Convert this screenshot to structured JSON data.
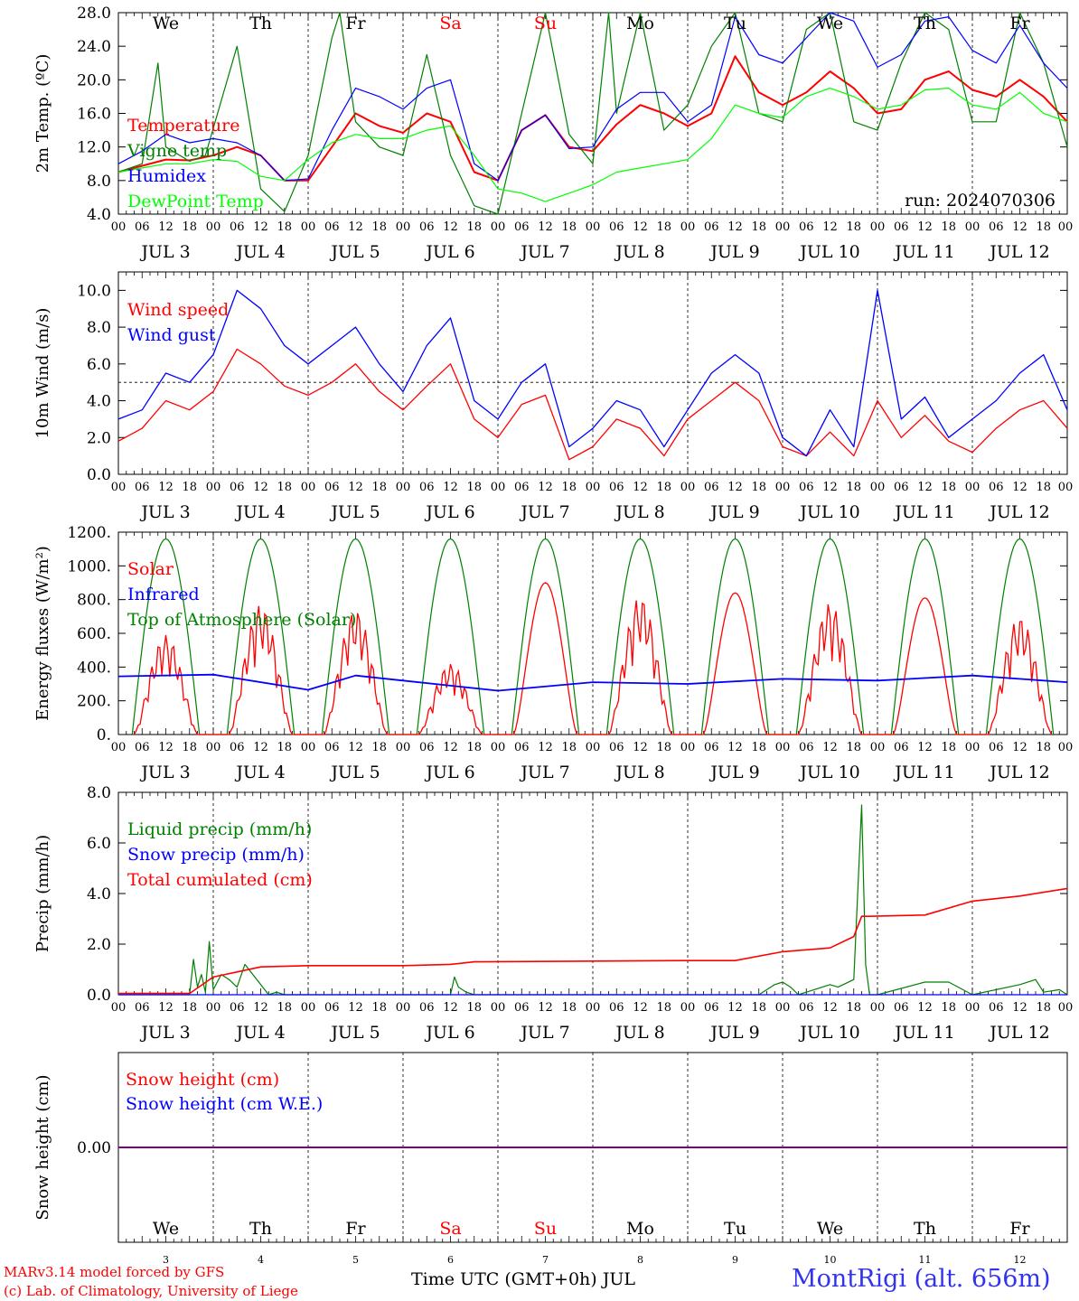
{
  "colors": {
    "red": "#ff0000",
    "green": "#008000",
    "blue": "#0000ff",
    "lightgreen": "#00ff00",
    "purple": "#7f007f",
    "black": "#000000"
  },
  "days": [
    "We",
    "Th",
    "Fr",
    "Sa",
    "Su",
    "Mo",
    "Tu",
    "We",
    "Th",
    "Fr"
  ],
  "weekend_days": [
    3,
    4
  ],
  "hour_ticks": [
    "00",
    "06",
    "12",
    "18"
  ],
  "end_tick": "00",
  "dates": [
    "JUL 3",
    "JUL 4",
    "JUL 5",
    "JUL 6",
    "JUL 7",
    "JUL 8",
    "JUL 9",
    "JUL 10",
    "JUL 11",
    "JUL 12"
  ],
  "bottom_day_numbers": [
    "3",
    "4",
    "5",
    "6",
    "7",
    "8",
    "9",
    "10",
    "11",
    "12"
  ],
  "run_label": "run: 2024070306",
  "footer": {
    "model": "MARv3.14 model forced by GFS",
    "lab": "(c) Lab. of Climatology, University of Liege",
    "xlabel": "Time UTC (GMT+0h) JUL",
    "station": "MontRigi (alt. 656m)"
  },
  "chart_data": [
    {
      "type": "line",
      "ylabel": "2m Temp. (ºC)",
      "ylim": [
        4,
        28
      ],
      "yticks": [
        "4.0",
        "8.0",
        "12.0",
        "16.0",
        "20.0",
        "24.0",
        "28.0"
      ],
      "x_unit": "hours since JUL 3 00 UTC",
      "legend": [
        "Temperature",
        "Vigne temp",
        "Humidex",
        "DewPoint Temp"
      ],
      "series": [
        {
          "name": "Temperature",
          "color": "red",
          "x": [
            0,
            12,
            18,
            24,
            30,
            36,
            42,
            48,
            54,
            60,
            66,
            72,
            78,
            84,
            90,
            96,
            102,
            108,
            114,
            120,
            126,
            132,
            138,
            144,
            150,
            156,
            162,
            168,
            174,
            180,
            186,
            192,
            198,
            204,
            210,
            216,
            222,
            228,
            234,
            240
          ],
          "values": [
            9.0,
            10.5,
            10.4,
            11.0,
            12.0,
            11.0,
            8.0,
            8.0,
            12.0,
            16.0,
            14.5,
            13.7,
            16.0,
            15.0,
            9.0,
            8.0,
            14.0,
            15.8,
            12.0,
            11.5,
            14.7,
            17.0,
            16.0,
            14.5,
            16.0,
            22.8,
            18.5,
            17.0,
            18.5,
            21.0,
            19.0,
            16.0,
            16.5,
            20.0,
            21.0,
            18.8,
            18.0,
            20.0,
            18.0,
            15.0
          ]
        },
        {
          "name": "Vigne temp",
          "color": "green",
          "x": [
            0,
            6,
            10,
            12,
            18,
            22,
            30,
            36,
            42,
            48,
            54,
            56,
            60,
            66,
            72,
            78,
            84,
            90,
            96,
            102,
            108,
            114,
            120,
            124,
            126,
            132,
            138,
            144,
            150,
            156,
            162,
            168,
            174,
            180,
            186,
            192,
            198,
            204,
            210,
            216,
            222,
            228,
            234,
            240
          ],
          "values": [
            9.0,
            10.0,
            22.0,
            12.0,
            10.3,
            11.0,
            24.0,
            7.0,
            4.3,
            11.0,
            25.0,
            28.0,
            15.0,
            12.0,
            11.0,
            23.0,
            11.0,
            5.0,
            4.0,
            16.0,
            28.0,
            13.5,
            10.0,
            28.0,
            16.0,
            28.0,
            14.0,
            17.0,
            24.0,
            28.0,
            16.0,
            15.0,
            26.0,
            28.0,
            15.0,
            14.0,
            22.0,
            28.0,
            26.0,
            15.0,
            15.0,
            28.0,
            22.0,
            12.0
          ]
        },
        {
          "name": "Humidex",
          "color": "blue",
          "x": [
            0,
            6,
            12,
            18,
            24,
            30,
            36,
            42,
            48,
            54,
            60,
            66,
            72,
            78,
            84,
            90,
            96,
            102,
            108,
            114,
            120,
            126,
            132,
            138,
            144,
            150,
            156,
            162,
            168,
            174,
            180,
            186,
            192,
            198,
            204,
            210,
            216,
            222,
            228,
            234,
            240
          ],
          "values": [
            10.0,
            11.5,
            13.5,
            12.5,
            13.0,
            12.5,
            11.0,
            8.0,
            8.2,
            14.0,
            19.0,
            18.0,
            16.5,
            19.0,
            20.0,
            10.0,
            8.0,
            14.0,
            15.8,
            11.8,
            12.0,
            16.5,
            18.5,
            18.5,
            15.0,
            17.0,
            27.5,
            23.0,
            22.0,
            25.0,
            28.0,
            27.0,
            21.5,
            23.0,
            27.0,
            27.5,
            23.5,
            22.0,
            26.5,
            22.0,
            19.0
          ]
        },
        {
          "name": "DewPoint Temp",
          "color": "lightgreen",
          "x": [
            0,
            6,
            12,
            18,
            24,
            30,
            36,
            42,
            48,
            54,
            60,
            66,
            72,
            78,
            84,
            90,
            96,
            102,
            108,
            114,
            120,
            126,
            132,
            138,
            144,
            150,
            156,
            162,
            168,
            174,
            180,
            186,
            192,
            198,
            204,
            210,
            216,
            222,
            228,
            234,
            240
          ],
          "values": [
            9.0,
            9.5,
            10.0,
            10.0,
            10.5,
            10.3,
            8.5,
            8.0,
            10.5,
            12.5,
            13.5,
            13.0,
            13.0,
            14.0,
            14.5,
            11.0,
            7.0,
            6.5,
            5.5,
            6.5,
            7.5,
            9.0,
            9.5,
            10.0,
            10.5,
            13.0,
            17.0,
            16.0,
            15.5,
            18.0,
            19.0,
            18.0,
            16.5,
            17.0,
            18.8,
            19.0,
            17.0,
            16.5,
            18.5,
            16.0,
            15.0
          ]
        }
      ]
    },
    {
      "type": "line",
      "ylabel": "10m Wind (m/s)",
      "ylim": [
        0,
        11
      ],
      "yticks": [
        "0.0",
        "2.0",
        "4.0",
        "6.0",
        "8.0",
        "10.0"
      ],
      "reference_line": 5.0,
      "legend": [
        "Wind speed",
        "Wind gust"
      ],
      "series": [
        {
          "name": "Wind speed",
          "color": "red",
          "x": [
            0,
            6,
            12,
            18,
            24,
            30,
            36,
            42,
            48,
            54,
            60,
            66,
            72,
            78,
            84,
            90,
            96,
            102,
            108,
            114,
            120,
            126,
            132,
            138,
            144,
            150,
            156,
            162,
            168,
            174,
            180,
            186,
            192,
            198,
            204,
            210,
            216,
            222,
            228,
            234,
            240
          ],
          "values": [
            1.8,
            2.5,
            4.0,
            3.5,
            4.5,
            6.8,
            6.0,
            4.8,
            4.3,
            5.0,
            6.0,
            4.5,
            3.5,
            4.8,
            6.0,
            3.0,
            2.0,
            3.8,
            4.3,
            0.8,
            1.5,
            3.0,
            2.5,
            1.0,
            3.0,
            4.0,
            5.0,
            4.0,
            1.5,
            1.0,
            2.3,
            1.0,
            4.0,
            2.0,
            3.2,
            1.8,
            1.2,
            2.5,
            3.5,
            4.0,
            2.5
          ]
        },
        {
          "name": "Wind gust",
          "color": "blue",
          "x": [
            0,
            6,
            12,
            18,
            24,
            30,
            36,
            42,
            48,
            54,
            60,
            66,
            72,
            78,
            84,
            90,
            96,
            102,
            108,
            114,
            120,
            126,
            132,
            138,
            144,
            150,
            156,
            162,
            168,
            174,
            180,
            186,
            192,
            198,
            204,
            210,
            216,
            222,
            228,
            234,
            240
          ],
          "values": [
            3.0,
            3.5,
            5.5,
            5.0,
            6.5,
            10.0,
            9.0,
            7.0,
            6.0,
            7.0,
            8.0,
            6.0,
            4.5,
            7.0,
            8.5,
            4.0,
            3.0,
            5.0,
            6.0,
            1.5,
            2.5,
            4.0,
            3.5,
            1.5,
            3.5,
            5.5,
            6.5,
            5.5,
            2.0,
            1.0,
            3.5,
            1.5,
            10.0,
            3.0,
            4.2,
            2.0,
            3.0,
            4.0,
            5.5,
            6.5,
            3.5
          ]
        }
      ]
    },
    {
      "type": "line",
      "ylabel": "Energy fluxes (W/m²)",
      "ylim": [
        0,
        1200
      ],
      "yticks": [
        "0.",
        "200.",
        "400.",
        "600.",
        "800.",
        "1000.",
        "1200."
      ],
      "legend": [
        "Solar",
        "Infrared",
        "Top of Atmosphere (Solar)"
      ],
      "toa_peak": 1160,
      "toa_hours": [
        3.5,
        20.5
      ],
      "solar_daily_peaks": [
        590,
        770,
        740,
        420,
        900,
        820,
        840,
        780,
        810,
        700
      ],
      "series": [
        {
          "name": "Infrared",
          "color": "blue",
          "x": [
            0,
            24,
            48,
            60,
            72,
            96,
            120,
            144,
            168,
            192,
            216,
            240
          ],
          "values": [
            345,
            355,
            265,
            350,
            320,
            260,
            310,
            300,
            330,
            320,
            350,
            310
          ]
        }
      ]
    },
    {
      "type": "line",
      "ylabel": "Precip (mm/h)",
      "ylim": [
        0,
        8
      ],
      "yticks": [
        "0.0",
        "2.0",
        "4.0",
        "6.0",
        "8.0"
      ],
      "legend": [
        "Liquid precip (mm/h)",
        "Snow precip (mm/h)",
        "Total cumulated (cm)"
      ],
      "series": [
        {
          "name": "Liquid precip (mm/h)",
          "color": "green",
          "x": [
            0,
            18,
            19,
            20,
            21,
            22,
            23,
            24,
            25,
            26,
            28,
            30,
            32,
            36,
            38,
            40,
            42,
            84,
            85,
            86,
            88,
            90,
            162,
            166,
            168,
            170,
            172,
            180,
            182,
            186,
            188,
            189,
            190,
            192,
            204,
            210,
            216,
            228,
            232,
            234,
            238,
            240
          ],
          "values": [
            0,
            0,
            1.4,
            0.3,
            0.8,
            0.1,
            2.1,
            0.2,
            0.5,
            0.8,
            0.6,
            0.3,
            1.2,
            0.4,
            0.0,
            0.1,
            0,
            0,
            0.7,
            0.3,
            0.1,
            0,
            0,
            0.4,
            0.5,
            0.3,
            0,
            0.4,
            0.3,
            0.6,
            7.5,
            1.2,
            0,
            0,
            0.5,
            0.5,
            0,
            0.4,
            0.6,
            0.1,
            0.2,
            0
          ]
        },
        {
          "name": "Snow precip (mm/h)",
          "color": "blue",
          "x": [
            0,
            240
          ],
          "values": [
            0,
            0
          ]
        },
        {
          "name": "Total cumulated (cm)",
          "color": "red",
          "x": [
            0,
            18,
            24,
            30,
            36,
            48,
            72,
            84,
            90,
            144,
            156,
            168,
            180,
            186,
            188,
            190,
            204,
            216,
            228,
            240
          ],
          "values": [
            0.05,
            0.05,
            0.7,
            0.9,
            1.1,
            1.15,
            1.15,
            1.2,
            1.3,
            1.35,
            1.35,
            1.7,
            1.85,
            2.3,
            3.1,
            3.1,
            3.15,
            3.7,
            3.9,
            4.2
          ]
        }
      ]
    },
    {
      "type": "line",
      "ylabel": "Snow height (cm)",
      "yticks": [
        "0.00"
      ],
      "legend": [
        "Snow height (cm)",
        "Snow height (cm W.E.)"
      ],
      "series": [
        {
          "name": "Snow height (cm)",
          "color": "red",
          "x": [
            0,
            240
          ],
          "values": [
            0,
            0
          ]
        },
        {
          "name": "Snow height (cm W.E.)",
          "color": "blue",
          "x": [
            0,
            240
          ],
          "values": [
            0,
            0
          ]
        }
      ]
    }
  ]
}
